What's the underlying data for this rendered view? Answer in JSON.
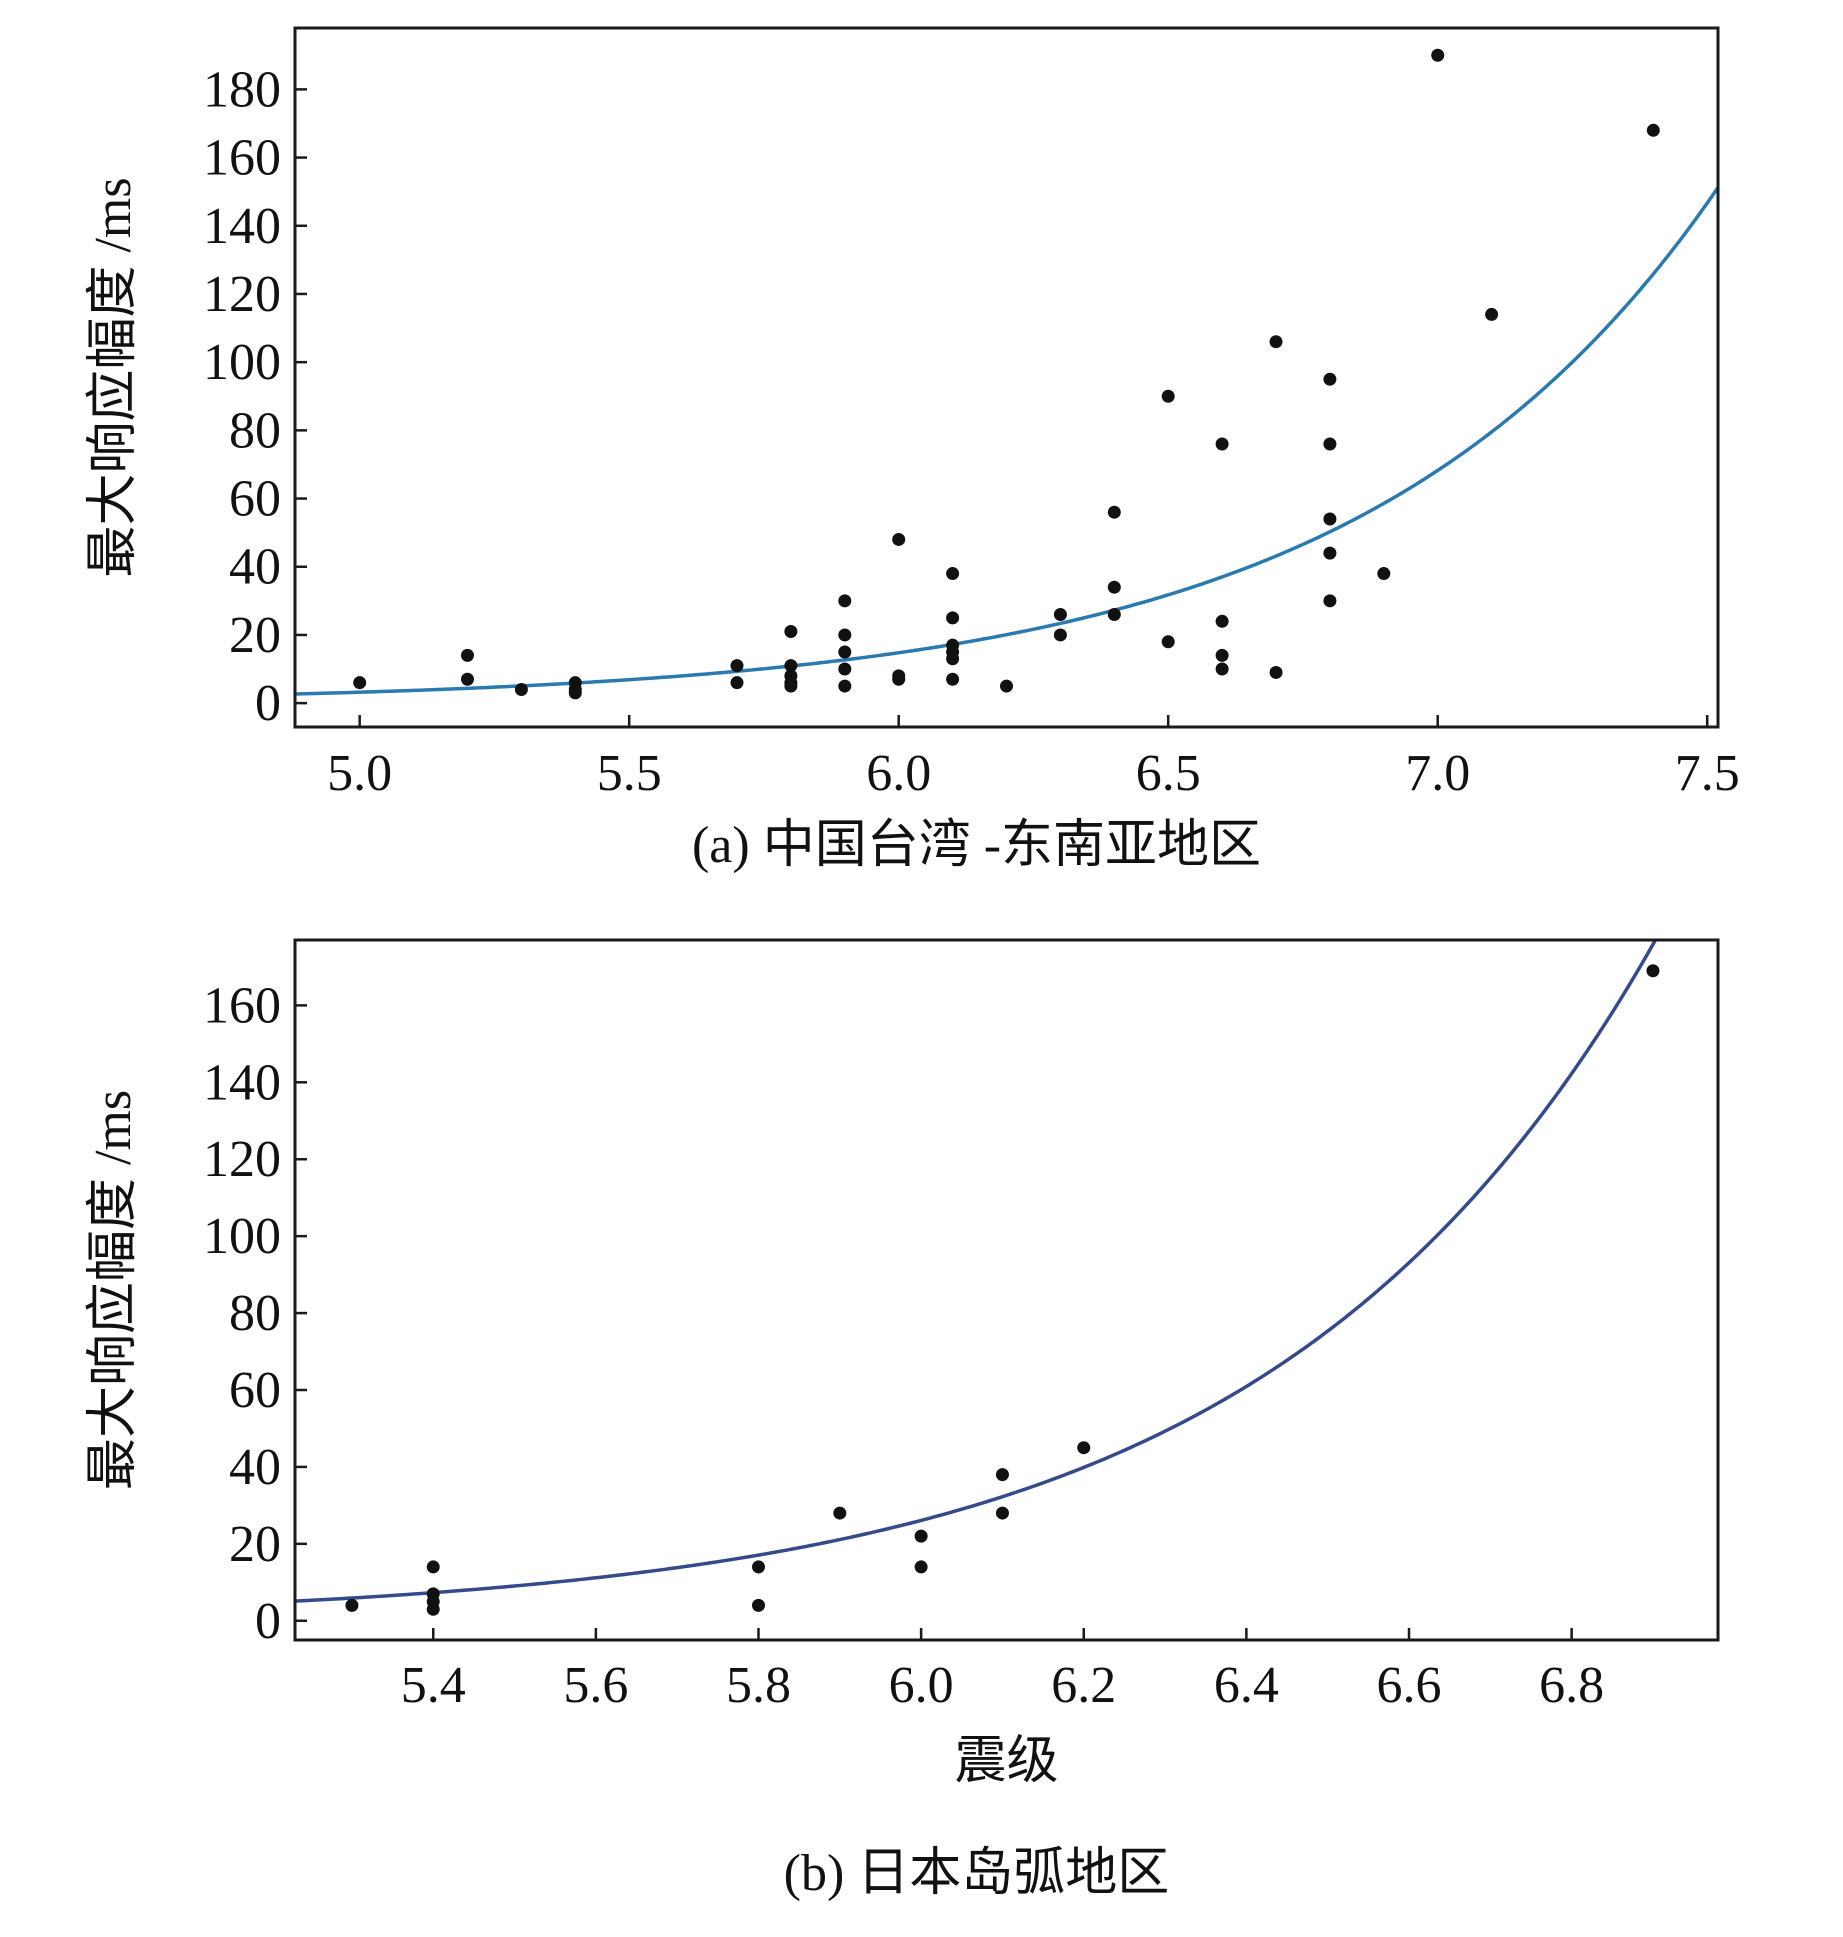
{
  "chart_data": [
    {
      "type": "scatter",
      "caption": "(a) 中国台湾 -东南亚地区",
      "xlabel": "",
      "ylabel": "最大响应幅度 /ms",
      "xlim": [
        4.88,
        7.52
      ],
      "ylim": [
        -7,
        198
      ],
      "xticks": [
        "5.0",
        "5.5",
        "6.0",
        "6.5",
        "7.0",
        "7.5"
      ],
      "yticks": [
        "0",
        "20",
        "40",
        "60",
        "80",
        "100",
        "120",
        "140",
        "160",
        "180"
      ],
      "grid": false,
      "curve_color": "#2a7ab0",
      "point_color": "#111111",
      "fit": {
        "model": "exponential",
        "a": 3.2,
        "b": 1.53,
        "m0": 5.0
      },
      "points": [
        [
          5.0,
          6
        ],
        [
          5.2,
          14
        ],
        [
          5.2,
          7
        ],
        [
          5.3,
          4
        ],
        [
          5.4,
          6
        ],
        [
          5.4,
          4
        ],
        [
          5.4,
          3
        ],
        [
          5.7,
          11
        ],
        [
          5.7,
          6
        ],
        [
          5.8,
          21
        ],
        [
          5.8,
          11
        ],
        [
          5.8,
          8
        ],
        [
          5.8,
          6
        ],
        [
          5.8,
          5
        ],
        [
          5.9,
          30
        ],
        [
          5.9,
          20
        ],
        [
          5.9,
          15
        ],
        [
          5.9,
          10
        ],
        [
          5.9,
          5
        ],
        [
          6.0,
          48
        ],
        [
          6.0,
          8
        ],
        [
          6.0,
          7
        ],
        [
          6.1,
          38
        ],
        [
          6.1,
          25
        ],
        [
          6.1,
          17
        ],
        [
          6.1,
          15
        ],
        [
          6.1,
          13
        ],
        [
          6.1,
          7
        ],
        [
          6.2,
          5
        ],
        [
          6.3,
          26
        ],
        [
          6.3,
          20
        ],
        [
          6.4,
          56
        ],
        [
          6.4,
          34
        ],
        [
          6.4,
          26
        ],
        [
          6.5,
          90
        ],
        [
          6.5,
          18
        ],
        [
          6.6,
          76
        ],
        [
          6.6,
          24
        ],
        [
          6.6,
          14
        ],
        [
          6.6,
          10
        ],
        [
          6.7,
          106
        ],
        [
          6.7,
          9
        ],
        [
          6.8,
          95
        ],
        [
          6.8,
          76
        ],
        [
          6.8,
          54
        ],
        [
          6.8,
          44
        ],
        [
          6.8,
          30
        ],
        [
          6.9,
          38
        ],
        [
          7.0,
          190
        ],
        [
          7.1,
          114
        ],
        [
          7.4,
          168
        ]
      ]
    },
    {
      "type": "scatter",
      "caption": "(b) 日本岛弧地区",
      "xlabel": "震级",
      "ylabel": "最大响应幅度 /ms",
      "xlim": [
        5.23,
        6.98
      ],
      "ylim": [
        -5,
        177
      ],
      "xticks": [
        "5.4",
        "5.6",
        "5.8",
        "6.0",
        "6.2",
        "6.4",
        "6.6",
        "6.8"
      ],
      "yticks": [
        "0",
        "20",
        "40",
        "60",
        "80",
        "100",
        "120",
        "140",
        "160"
      ],
      "grid": false,
      "curve_color": "#354a8a",
      "point_color": "#111111",
      "fit": {
        "model": "exponential",
        "a": 5.1,
        "b": 2.12,
        "m0": 5.23
      },
      "points": [
        [
          5.3,
          4
        ],
        [
          5.4,
          14
        ],
        [
          5.4,
          7
        ],
        [
          5.4,
          5
        ],
        [
          5.4,
          3
        ],
        [
          5.8,
          14
        ],
        [
          5.8,
          4
        ],
        [
          5.9,
          28
        ],
        [
          6.0,
          22
        ],
        [
          6.0,
          14
        ],
        [
          6.1,
          38
        ],
        [
          6.1,
          28
        ],
        [
          6.2,
          45
        ],
        [
          6.9,
          169
        ]
      ]
    }
  ]
}
